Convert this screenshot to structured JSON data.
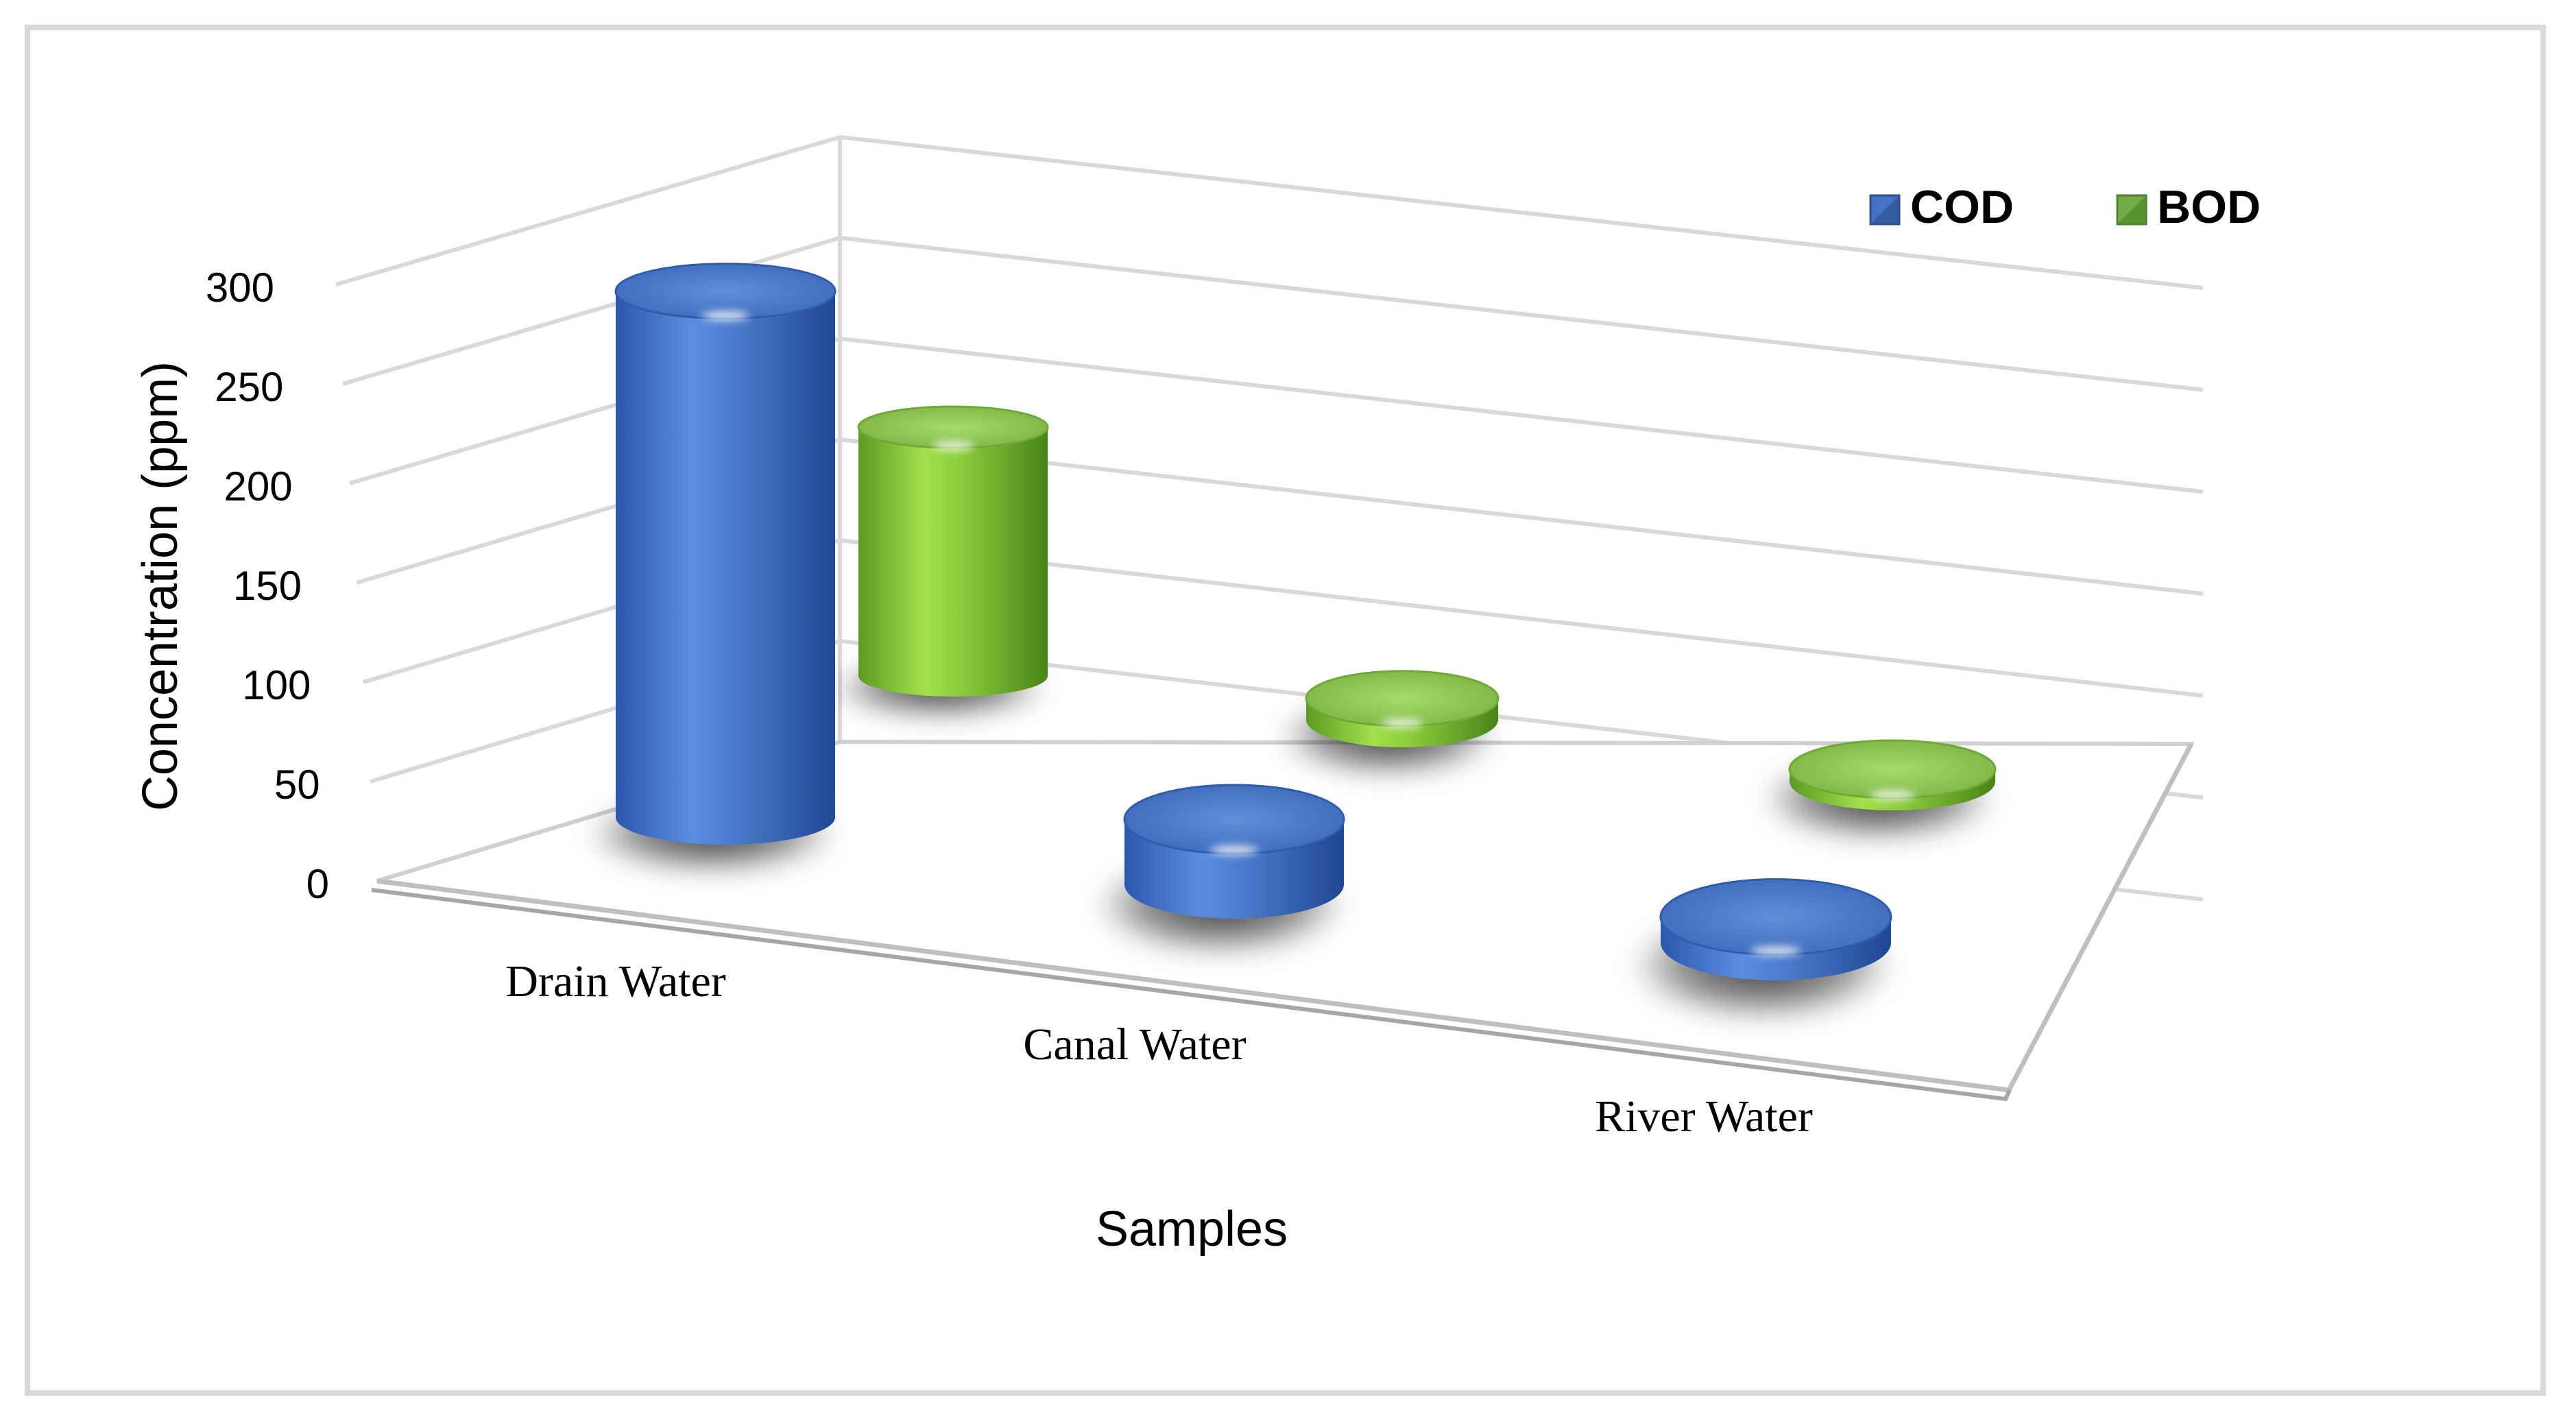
{
  "chart_data": {
    "type": "bar",
    "ylabel": "Concentration (ppm)",
    "xlabel": "Samples",
    "ylim": [
      0,
      300
    ],
    "yticks": [
      "0",
      "50",
      "100",
      "150",
      "200",
      "250",
      "300"
    ],
    "categories": [
      "Drain Water",
      "Canal Water",
      "River Water"
    ],
    "series": [
      {
        "name": "COD",
        "values": [
          278,
          38,
          15
        ],
        "color": "#4472C4"
      },
      {
        "name": "BOD",
        "values": [
          138,
          12,
          3
        ],
        "color": "#70AD47"
      }
    ],
    "legend": "top-right",
    "grid": true,
    "style": "3d-cylinder"
  }
}
